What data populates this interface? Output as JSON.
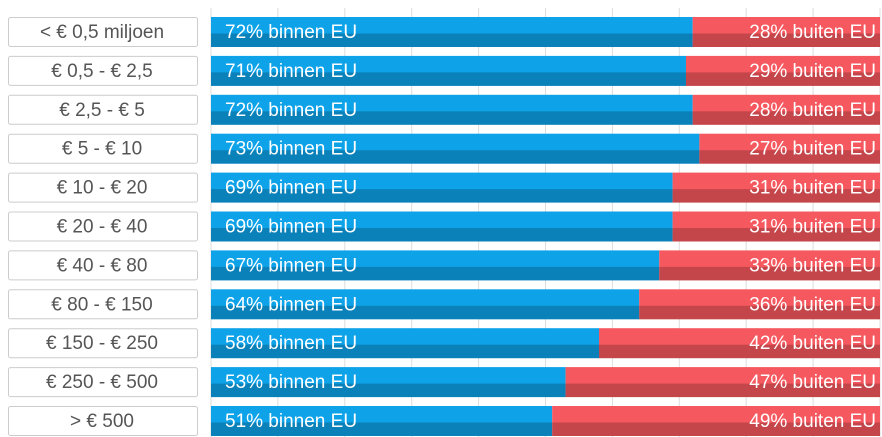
{
  "chart_data": {
    "type": "stacked-bar-horizontal",
    "categories": [
      "< € 0,5 miljoen",
      "€ 0,5 - € 2,5",
      "€ 2,5 - € 5",
      "€ 5 - € 10",
      "€ 10 - € 20",
      "€ 20 - € 40",
      "€ 40 - € 80",
      "€ 80 - € 150",
      "€ 150 - € 250",
      "€ 250 - € 500",
      "> € 500"
    ],
    "series": [
      {
        "color": "#0ea2e8",
        "values": [
          72,
          71,
          72,
          73,
          69,
          69,
          67,
          64,
          58,
          53,
          51
        ],
        "value_labels": [
          "72% binnen EU",
          "71% binnen EU",
          "72% binnen EU",
          "73% binnen EU",
          "69% binnen EU",
          "69% binnen EU",
          "67% binnen EU",
          "64% binnen EU",
          "58% binnen EU",
          "53% binnen EU",
          "51% binnen EU"
        ]
      },
      {
        "color": "#f5585e",
        "values": [
          28,
          29,
          28,
          27,
          31,
          31,
          33,
          36,
          42,
          47,
          49
        ],
        "value_labels": [
          "28% buiten EU",
          "29% buiten EU",
          "28% buiten EU",
          "27% buiten EU",
          "31% buiten EU",
          "31% buiten EU",
          "33% buiten EU",
          "36% buiten EU",
          "42% buiten EU",
          "47% buiten EU",
          "49% buiten EU"
        ]
      }
    ],
    "xlim": [
      0,
      100
    ],
    "xticks": [
      0,
      10,
      20,
      30,
      40,
      50,
      60,
      70,
      80,
      90,
      100
    ],
    "grid": true
  }
}
